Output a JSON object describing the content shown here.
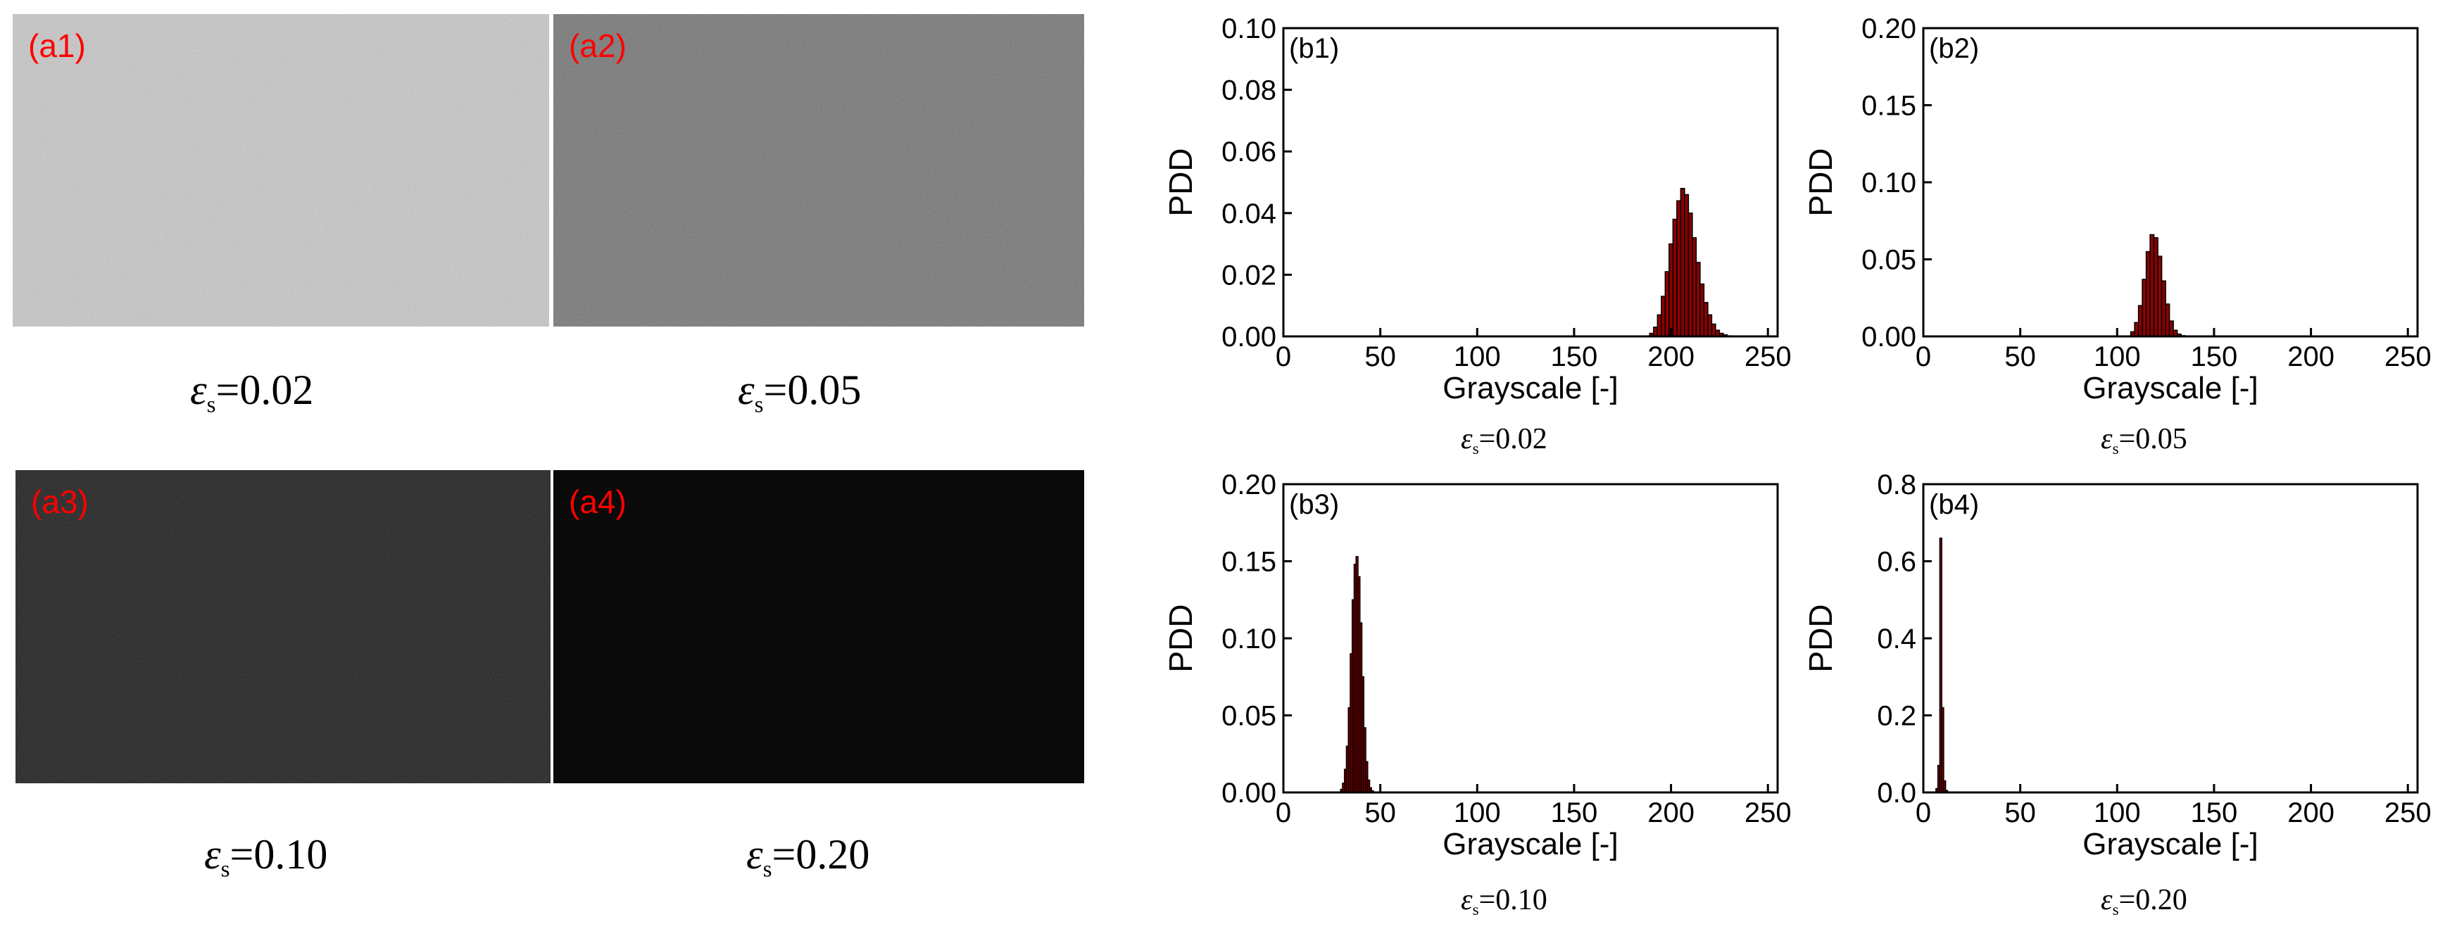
{
  "images": [
    {
      "label": "(a1)",
      "caption_value": "=0.02",
      "level": 0.78
    },
    {
      "label": "(a2)",
      "caption_value": "=0.05",
      "level": 0.47
    },
    {
      "label": "(a3)",
      "caption_value": "=0.10",
      "level": 0.15
    },
    {
      "label": "(a4)",
      "caption_value": "=0.20",
      "level": 0.04
    }
  ],
  "caption_symbol": "ε",
  "caption_subscript": "s",
  "chart_data": [
    {
      "type": "bar",
      "panel_label": "(b1)",
      "xlabel": "Grayscale [-]",
      "ylabel": "PDD",
      "xlim": [
        0,
        255
      ],
      "ylim": [
        0,
        0.1
      ],
      "xticks": [
        0,
        50,
        100,
        150,
        200,
        250
      ],
      "yticks": [
        "0.00",
        "0.02",
        "0.04",
        "0.06",
        "0.08",
        "0.10"
      ],
      "caption_value": "=0.02",
      "x": [
        190,
        192,
        194,
        196,
        198,
        200,
        202,
        204,
        206,
        208,
        210,
        212,
        214,
        216,
        218,
        220,
        222,
        224,
        226,
        228,
        230
      ],
      "values": [
        0.001,
        0.003,
        0.007,
        0.013,
        0.021,
        0.03,
        0.038,
        0.044,
        0.048,
        0.046,
        0.04,
        0.032,
        0.024,
        0.017,
        0.011,
        0.007,
        0.004,
        0.002,
        0.001,
        0.0005,
        0.0002
      ]
    },
    {
      "type": "bar",
      "panel_label": "(b2)",
      "xlabel": "Grayscale [-]",
      "ylabel": "PDD",
      "xlim": [
        0,
        255
      ],
      "ylim": [
        0,
        0.2
      ],
      "xticks": [
        0,
        50,
        100,
        150,
        200,
        250
      ],
      "yticks": [
        "0.00",
        "0.05",
        "0.10",
        "0.15",
        "0.20"
      ],
      "caption_value": "=0.05",
      "x": [
        108,
        110,
        112,
        114,
        116,
        118,
        120,
        122,
        124,
        126,
        128,
        130,
        132,
        134
      ],
      "values": [
        0.003,
        0.009,
        0.02,
        0.037,
        0.055,
        0.066,
        0.064,
        0.052,
        0.036,
        0.021,
        0.01,
        0.004,
        0.0015,
        0.0005
      ]
    },
    {
      "type": "bar",
      "panel_label": "(b3)",
      "xlabel": "Grayscale [-]",
      "ylabel": "PDD",
      "xlim": [
        0,
        255
      ],
      "ylim": [
        0,
        0.2
      ],
      "xticks": [
        0,
        50,
        100,
        150,
        200,
        250
      ],
      "yticks": [
        "0.00",
        "0.05",
        "0.10",
        "0.15",
        "0.20"
      ],
      "caption_value": "=0.10",
      "x": [
        30,
        31,
        32,
        33,
        34,
        35,
        36,
        37,
        38,
        39,
        40,
        41,
        42,
        43,
        44,
        45,
        46
      ],
      "values": [
        0.002,
        0.006,
        0.015,
        0.03,
        0.055,
        0.09,
        0.125,
        0.148,
        0.153,
        0.14,
        0.11,
        0.075,
        0.042,
        0.02,
        0.008,
        0.003,
        0.001
      ]
    },
    {
      "type": "bar",
      "panel_label": "(b4)",
      "xlabel": "Grayscale [-]",
      "ylabel": "PDD",
      "xlim": [
        0,
        255
      ],
      "ylim": [
        0,
        0.8
      ],
      "xticks": [
        0,
        50,
        100,
        150,
        200,
        250
      ],
      "yticks": [
        "0.0",
        "0.2",
        "0.4",
        "0.6",
        "0.8"
      ],
      "caption_value": "=0.20",
      "x": [
        7,
        8,
        9,
        10,
        11,
        12
      ],
      "values": [
        0.01,
        0.07,
        0.66,
        0.22,
        0.03,
        0.005
      ]
    }
  ]
}
